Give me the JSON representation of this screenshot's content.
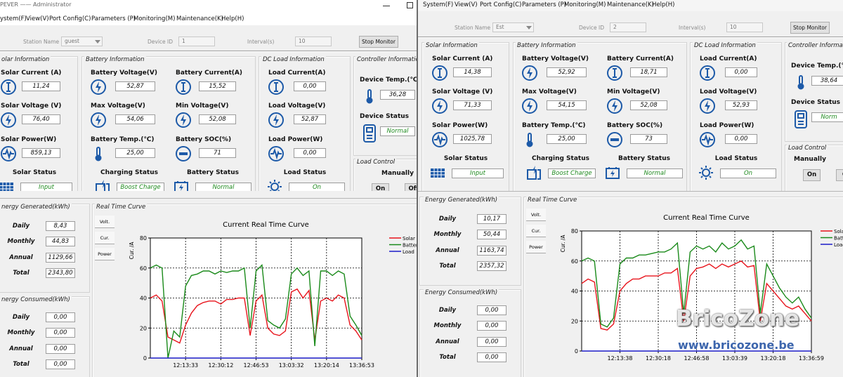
{
  "windows": [
    {
      "title": "PEVER —— Administrator",
      "menu": [
        "ystem(F)",
        "View(V)",
        "Port Config(C)",
        "Parameters (P)",
        "Monitoring(M)",
        "Maintenance(K)",
        "Help(H)"
      ],
      "toolbar": {
        "station_label": "Station Name",
        "station": "guest",
        "device_label": "Device ID",
        "device": "1",
        "interval_label": "Interval(s)",
        "interval": "10",
        "button": "Stop Monitor"
      },
      "solar": {
        "header": "olar Information",
        "fields": [
          {
            "label": "Solar Current (A)",
            "value": "11,24"
          },
          {
            "label": "Solar Voltage (V)",
            "value": "76,40"
          },
          {
            "label": "Solar Power(W)",
            "value": "859,13"
          }
        ],
        "status": {
          "label": "Solar Status",
          "value": "Input"
        }
      },
      "battery": {
        "header": "Battery Information",
        "fields": [
          {
            "label": "Battery Voltage(V)",
            "value": "52,87"
          },
          {
            "label": "Max Voltage(V)",
            "value": "54,06"
          },
          {
            "label": "Battery Temp.(℃)",
            "value": "25,00"
          },
          {
            "label": "Battery Current(A)",
            "value": "15,52"
          },
          {
            "label": "Min Voltage(V)",
            "value": "52,08"
          },
          {
            "label": "Battery SOC(%)",
            "value": "71"
          }
        ],
        "charging": {
          "label": "Charging Status",
          "value": "Boost Charge"
        },
        "status": {
          "label": "Battery Status",
          "value": "Normal"
        }
      },
      "load": {
        "header": "DC Load Information",
        "fields": [
          {
            "label": "Load Current(A)",
            "value": "0,00"
          },
          {
            "label": "Load Voltage(V)",
            "value": "52,87"
          },
          {
            "label": "Load Power(W)",
            "value": "0,00"
          }
        ],
        "status": {
          "label": "Load Status",
          "value": "On"
        }
      },
      "controller": {
        "header": "Controller Information",
        "fields": [
          {
            "label": "Device Temp.(℃)",
            "value": "36,28"
          },
          {
            "label": "Device Status",
            "value": "Normal"
          }
        ]
      },
      "load_control": {
        "header": "Load Control",
        "mode": "Manually",
        "buttons": [
          "On",
          "Off"
        ]
      },
      "energy_generated": {
        "header": "nergy Generated(kWh)",
        "rows": [
          {
            "label": "Daily",
            "value": "8,43"
          },
          {
            "label": "Monthly",
            "value": "44,83"
          },
          {
            "label": "Annual",
            "value": "1129,66"
          },
          {
            "label": "Total",
            "value": "2343,80"
          }
        ]
      },
      "energy_consumed": {
        "header": "nergy Consumed(kWh)",
        "rows": [
          {
            "label": "Daily",
            "value": "0,00"
          },
          {
            "label": "Monthly",
            "value": "0,00"
          },
          {
            "label": "Annual",
            "value": "0,00"
          },
          {
            "label": "Total",
            "value": "0,00"
          }
        ]
      },
      "curve": {
        "header": "Real Time Curve",
        "buttons": [
          "Volt.",
          "Cur.",
          "Power"
        ]
      }
    },
    {
      "menu": [
        "System(F)",
        "View(V)",
        "Port Config(C)",
        "Parameters (P)",
        "Monitoring(M)",
        "Maintenance(K)",
        "Help(H)"
      ],
      "toolbar": {
        "station_label": "Station Name",
        "station": "Est",
        "device_label": "Device ID",
        "device": "2",
        "interval_label": "Interval(s)",
        "interval": "10",
        "button": "Stop Monitor"
      },
      "solar": {
        "header": "Solar Information",
        "fields": [
          {
            "label": "Solar Current (A)",
            "value": "14,38"
          },
          {
            "label": "Solar Voltage (V)",
            "value": "71,33"
          },
          {
            "label": "Solar Power(W)",
            "value": "1025,78"
          }
        ],
        "status": {
          "label": "Solar Status",
          "value": "Input"
        }
      },
      "battery": {
        "header": "Battery Information",
        "fields": [
          {
            "label": "Battery Voltage(V)",
            "value": "52,92"
          },
          {
            "label": "Max Voltage(V)",
            "value": "54,15"
          },
          {
            "label": "Battery Temp.(℃)",
            "value": "25,00"
          },
          {
            "label": "Battery Current(A)",
            "value": "18,71"
          },
          {
            "label": "Min Voltage(V)",
            "value": "52,08"
          },
          {
            "label": "Battery SOC(%)",
            "value": "73"
          }
        ],
        "charging": {
          "label": "Charging Status",
          "value": "Boost Charge"
        },
        "status": {
          "label": "Battery Status",
          "value": "Normal"
        }
      },
      "load": {
        "header": "DC Load Information",
        "fields": [
          {
            "label": "Load Current(A)",
            "value": "0,00"
          },
          {
            "label": "Load Voltage(V)",
            "value": "52,93"
          },
          {
            "label": "Load Power(W)",
            "value": "0,00"
          }
        ],
        "status": {
          "label": "Load Status",
          "value": "On"
        }
      },
      "controller": {
        "header": "Controller Informa",
        "fields": [
          {
            "label": "Device Temp.(℃",
            "value": "38,64"
          },
          {
            "label": "Device Status",
            "value": "Norm"
          }
        ]
      },
      "load_control": {
        "header": "Load Control",
        "mode": "Manually",
        "buttons": [
          "On",
          "O"
        ]
      },
      "energy_generated": {
        "header": "Energy Generated(kWh)",
        "rows": [
          {
            "label": "Daily",
            "value": "10,17"
          },
          {
            "label": "Monthly",
            "value": "50,44"
          },
          {
            "label": "Annual",
            "value": "1163,74"
          },
          {
            "label": "Total",
            "value": "2357,32"
          }
        ]
      },
      "energy_consumed": {
        "header": "Energy Consumed(kWh)",
        "rows": [
          {
            "label": "Daily",
            "value": "0,00"
          },
          {
            "label": "Monthly",
            "value": "0,00"
          },
          {
            "label": "Annual",
            "value": "0,00"
          },
          {
            "label": "Total",
            "value": "0,00"
          }
        ]
      },
      "curve": {
        "header": "Real Time Curve",
        "buttons": [
          "Volt.",
          "Cur.",
          "Power"
        ]
      }
    }
  ],
  "chart_data": [
    {
      "type": "line",
      "title": "Current Real Time Curve",
      "y_label": "Cur. /A",
      "ylim": [
        0,
        80
      ],
      "yticks": [
        0,
        20,
        40,
        60,
        80
      ],
      "grid": true,
      "categories": [
        null,
        null,
        null,
        null,
        null,
        null,
        "12:13:33",
        null,
        null,
        null,
        null,
        null,
        "12:30:12",
        null,
        null,
        null,
        null,
        null,
        "12:46:53",
        null,
        null,
        null,
        null,
        null,
        "13:03:32",
        null,
        null,
        null,
        null,
        null,
        "13:20:14",
        null,
        null,
        null,
        null,
        null,
        "13:36:53"
      ],
      "series": [
        {
          "name": "Solar",
          "color": "#e8141c",
          "values": [
            40,
            42,
            38,
            14,
            12,
            10,
            22,
            30,
            35,
            37,
            38,
            38,
            36,
            39,
            39,
            40,
            40,
            15,
            38,
            42,
            20,
            16,
            15,
            18,
            44,
            46,
            40,
            45,
            12,
            38,
            40,
            38,
            42,
            40,
            22,
            18,
            12
          ]
        },
        {
          "name": "Battery",
          "color": "#1a8a1a",
          "values": [
            60,
            62,
            60,
            0,
            18,
            14,
            48,
            55,
            56,
            58,
            58,
            56,
            58,
            57,
            58,
            58,
            60,
            20,
            58,
            62,
            25,
            22,
            20,
            26,
            56,
            60,
            55,
            58,
            8,
            58,
            58,
            55,
            58,
            56,
            28,
            22,
            15
          ]
        },
        {
          "name": "Load",
          "color": "#1c1cc8",
          "values": [
            0,
            0,
            0,
            0,
            0,
            0,
            0,
            0,
            0,
            0,
            0,
            0,
            0,
            0,
            0,
            0,
            0,
            0,
            0,
            0,
            0,
            0,
            0,
            0,
            0,
            0,
            0,
            0,
            0,
            0,
            0,
            0,
            0,
            0,
            0,
            0,
            0
          ]
        }
      ]
    },
    {
      "type": "line",
      "title": "Current Real Time Curve",
      "y_label": "Cur. /A",
      "ylim": [
        0,
        80
      ],
      "yticks": [
        0,
        20,
        40,
        60,
        80
      ],
      "grid": true,
      "categories": [
        null,
        null,
        null,
        null,
        null,
        null,
        "12:13:38",
        null,
        null,
        null,
        null,
        null,
        "12:30:18",
        null,
        null,
        null,
        null,
        null,
        "12:46:58",
        null,
        null,
        null,
        null,
        null,
        "13:03:39",
        null,
        null,
        null,
        null,
        null,
        "13:20:18",
        null,
        null,
        null,
        null,
        null,
        "13:36:59"
      ],
      "series": [
        {
          "name": "Sola",
          "color": "#e8141c",
          "values": [
            45,
            48,
            46,
            15,
            14,
            18,
            40,
            45,
            48,
            48,
            50,
            50,
            50,
            52,
            52,
            55,
            20,
            50,
            55,
            56,
            58,
            55,
            58,
            56,
            58,
            60,
            56,
            57,
            20,
            45,
            40,
            35,
            30,
            28,
            30,
            25,
            20
          ]
        },
        {
          "name": "Batt",
          "color": "#1a8a1a",
          "values": [
            60,
            62,
            60,
            18,
            16,
            22,
            58,
            62,
            62,
            64,
            64,
            65,
            66,
            66,
            68,
            72,
            25,
            66,
            70,
            68,
            70,
            66,
            72,
            68,
            70,
            74,
            68,
            70,
            25,
            58,
            50,
            42,
            36,
            32,
            36,
            28,
            22
          ]
        },
        {
          "name": "Load",
          "color": "#1c1cc8",
          "values": [
            0,
            0,
            0,
            0,
            0,
            0,
            0,
            0,
            0,
            0,
            0,
            0,
            0,
            0,
            0,
            0,
            0,
            0,
            0,
            0,
            0,
            0,
            0,
            0,
            0,
            0,
            0,
            0,
            0,
            0,
            0,
            0,
            0,
            0,
            0,
            0,
            0
          ]
        }
      ]
    }
  ],
  "watermark": {
    "title": "BricoZone",
    "url": "www.bricozone.be"
  }
}
